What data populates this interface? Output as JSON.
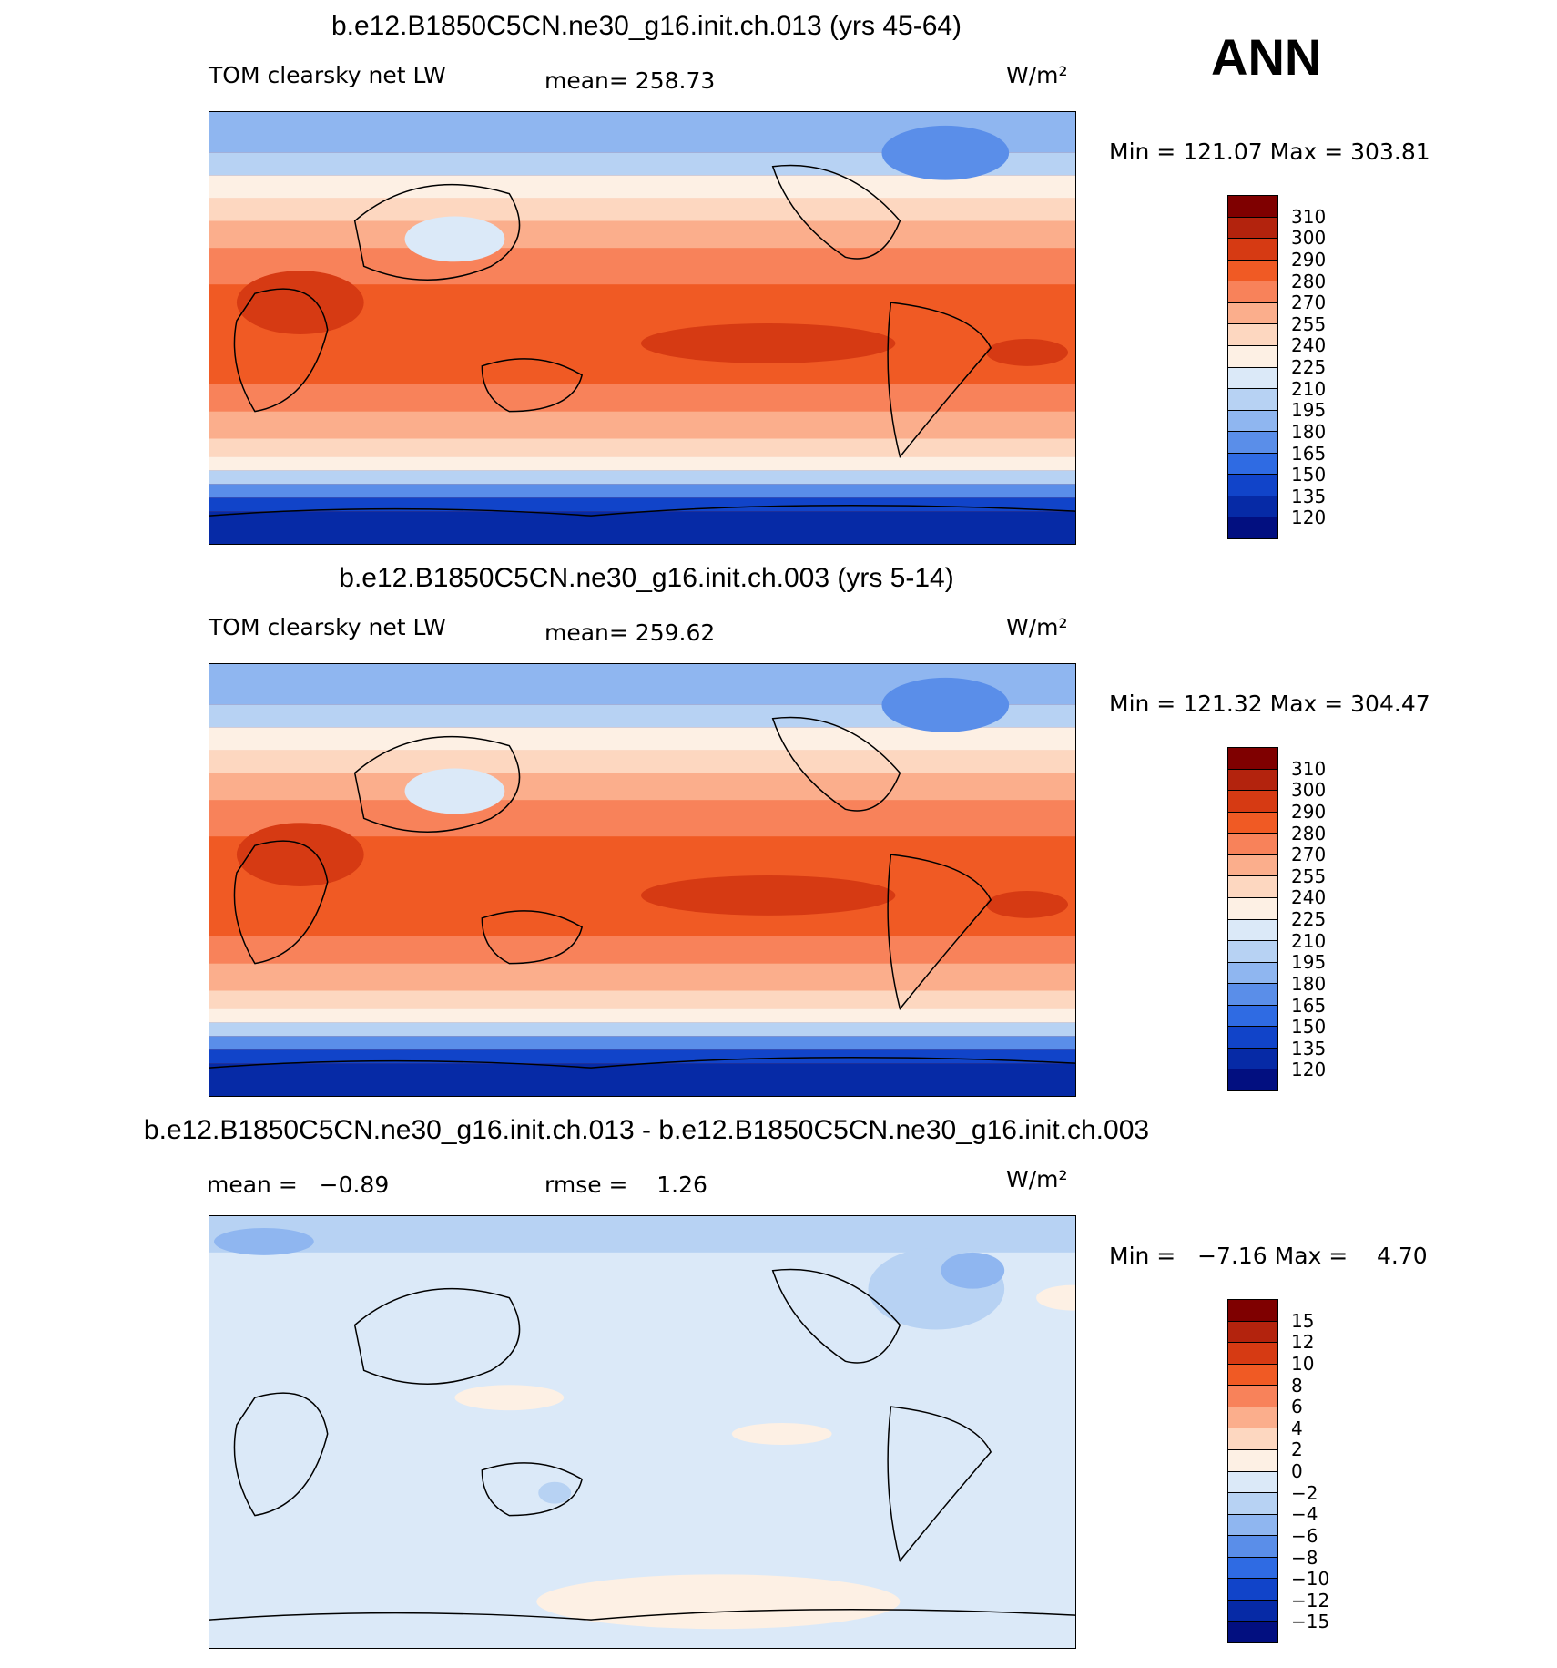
{
  "season": "ANN",
  "units": "W/m²",
  "chart_data": [
    {
      "type": "heatmap",
      "title": "b.e12.B1850C5CN.ne30_g16.init.ch.013 (yrs 45-64)",
      "variable": "TOM clearsky net LW",
      "mean_label": "mean= 258.73",
      "mean": 258.73,
      "min": 121.07,
      "max": 303.81,
      "minmax_label": "Min = 121.07 Max = 303.81",
      "colorbar_levels": [
        "310",
        "300",
        "290",
        "280",
        "270",
        "255",
        "240",
        "225",
        "210",
        "195",
        "180",
        "165",
        "150",
        "135",
        "120"
      ],
      "colorbar_colors": [
        "#7f0000",
        "#b3230d",
        "#d63a13",
        "#f05a24",
        "#f8825a",
        "#fbae8c",
        "#fdd7c0",
        "#fdf0e4",
        "#dbe9f8",
        "#b7d2f3",
        "#8fb6f0",
        "#5a8ee9",
        "#2f6be3",
        "#1144c9",
        "#062aa6",
        "#020f80"
      ]
    },
    {
      "type": "heatmap",
      "title": "b.e12.B1850C5CN.ne30_g16.init.ch.003 (yrs 5-14)",
      "variable": "TOM clearsky net LW",
      "mean_label": "mean= 259.62",
      "mean": 259.62,
      "min": 121.32,
      "max": 304.47,
      "minmax_label": "Min = 121.32 Max = 304.47",
      "colorbar_levels": [
        "310",
        "300",
        "290",
        "280",
        "270",
        "255",
        "240",
        "225",
        "210",
        "195",
        "180",
        "165",
        "150",
        "135",
        "120"
      ],
      "colorbar_colors": [
        "#7f0000",
        "#b3230d",
        "#d63a13",
        "#f05a24",
        "#f8825a",
        "#fbae8c",
        "#fdd7c0",
        "#fdf0e4",
        "#dbe9f8",
        "#b7d2f3",
        "#8fb6f0",
        "#5a8ee9",
        "#2f6be3",
        "#1144c9",
        "#062aa6",
        "#020f80"
      ]
    },
    {
      "type": "heatmap",
      "title": "b.e12.B1850C5CN.ne30_g16.init.ch.013 - b.e12.B1850C5CN.ne30_g16.init.ch.003",
      "mean_label": "mean =   −0.89",
      "rmse_label": "rmse =    1.26",
      "mean": -0.89,
      "rmse": 1.26,
      "min": -7.16,
      "max": 4.7,
      "minmax_label": "Min =   −7.16 Max =    4.70",
      "colorbar_levels": [
        "15",
        "12",
        "10",
        "8",
        "6",
        "4",
        "2",
        "0",
        "−2",
        "−4",
        "−6",
        "−8",
        "−10",
        "−12",
        "−15"
      ],
      "colorbar_colors": [
        "#7f0000",
        "#b3230d",
        "#d63a13",
        "#f05a24",
        "#f8825a",
        "#fbae8c",
        "#fdd7c0",
        "#fdf0e4",
        "#dbe9f8",
        "#b7d2f3",
        "#8fb6f0",
        "#5a8ee9",
        "#2f6be3",
        "#1144c9",
        "#062aa6",
        "#020f80"
      ]
    }
  ]
}
